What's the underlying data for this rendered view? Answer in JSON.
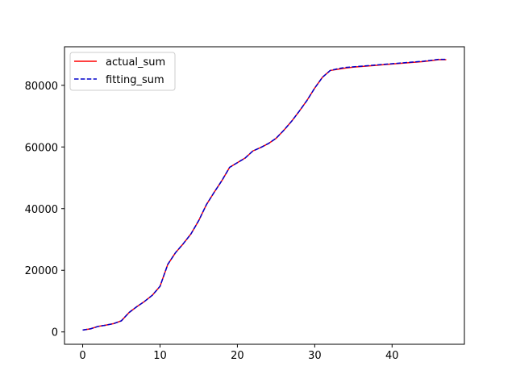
{
  "chart_data": {
    "type": "line",
    "title": "",
    "xlabel": "",
    "ylabel": "",
    "xlim": [
      -2.35,
      49.35
    ],
    "ylim": [
      -4000,
      92500
    ],
    "xticks": [
      0,
      10,
      20,
      30,
      40
    ],
    "yticks": [
      0,
      20000,
      40000,
      60000,
      80000
    ],
    "grid": false,
    "legend_position": "upper-left",
    "x": [
      0,
      1,
      2,
      3,
      4,
      5,
      6,
      7,
      8,
      9,
      10,
      11,
      12,
      13,
      14,
      15,
      16,
      17,
      18,
      19,
      20,
      21,
      22,
      23,
      24,
      25,
      26,
      27,
      28,
      29,
      30,
      31,
      32,
      33,
      34,
      35,
      36,
      37,
      38,
      39,
      40,
      41,
      42,
      43,
      44,
      45,
      46,
      47
    ],
    "series": [
      {
        "name": "actual_sum",
        "color": "#ff0000",
        "style": "solid",
        "values": [
          600,
          1000,
          1800,
          2200,
          2700,
          3600,
          6300,
          8200,
          9900,
          11900,
          14800,
          21900,
          25700,
          28600,
          31800,
          36100,
          41300,
          45300,
          49100,
          53400,
          54900,
          56400,
          58700,
          59800,
          61100,
          62800,
          65400,
          68300,
          71600,
          75100,
          79100,
          82600,
          84800,
          85200,
          85600,
          85900,
          86100,
          86300,
          86500,
          86700,
          86900,
          87100,
          87300,
          87500,
          87700,
          88000,
          88300,
          88300
        ]
      },
      {
        "name": "fitting_sum",
        "color": "#0000cc",
        "style": "dashed",
        "values": [
          600,
          1000,
          1800,
          2200,
          2700,
          3600,
          6300,
          8200,
          9900,
          11900,
          14800,
          21900,
          25700,
          28600,
          31800,
          36100,
          41300,
          45300,
          49100,
          53400,
          54900,
          56400,
          58700,
          59800,
          61100,
          62800,
          65400,
          68300,
          71600,
          75100,
          79100,
          82600,
          84800,
          85400,
          85800,
          86000,
          86200,
          86400,
          86600,
          86800,
          87000,
          87200,
          87400,
          87600,
          87800,
          88100,
          88400,
          88400
        ]
      }
    ]
  }
}
